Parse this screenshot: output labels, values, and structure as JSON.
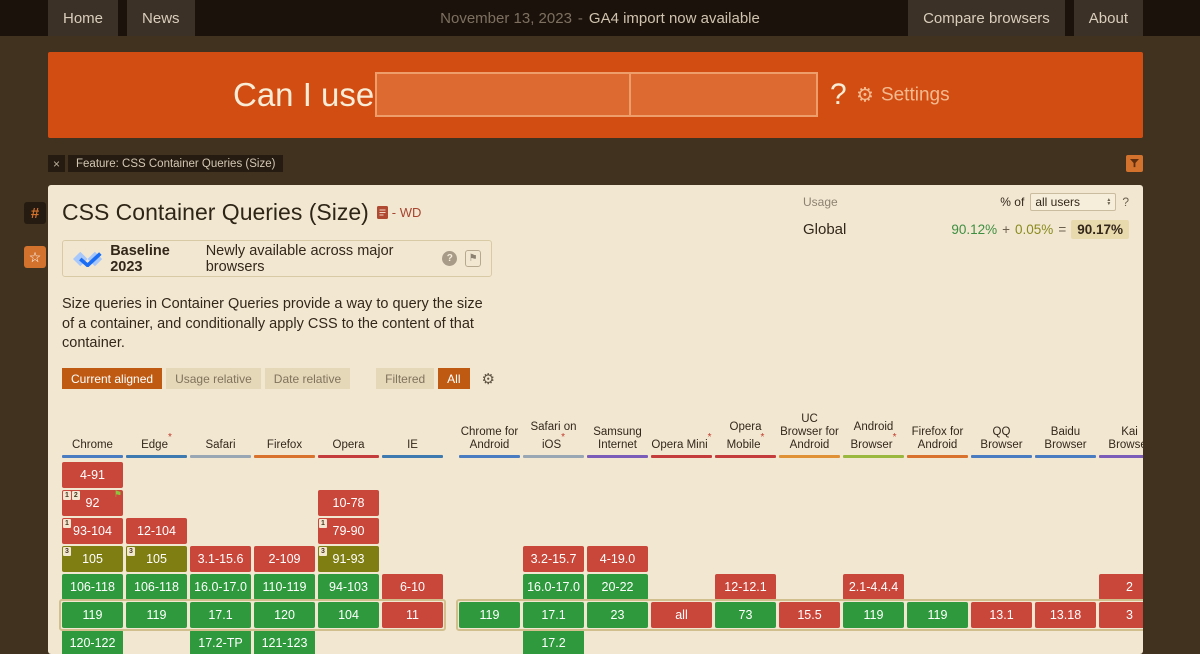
{
  "topbar": {
    "nav_left": [
      {
        "label": "Home"
      },
      {
        "label": "News"
      }
    ],
    "announcement": {
      "date": "November 13, 2023",
      "sep": "-",
      "message": "GA4 import now available"
    },
    "nav_right": [
      {
        "label": "Compare browsers"
      },
      {
        "label": "About"
      }
    ]
  },
  "hero": {
    "title": "Can I use",
    "suffix": "?",
    "settings": "Settings",
    "search_value": "",
    "search_placeholder": ""
  },
  "feature_bar": {
    "close": "×",
    "tag": "Feature: CSS Container Queries (Size)"
  },
  "side": {
    "hash": "#",
    "star": "☆"
  },
  "feature": {
    "title": "CSS Container Queries (Size)",
    "spec_status": "- WD",
    "usage": {
      "label": "Usage",
      "percent_of": "% of",
      "select": "all users",
      "help": "?",
      "scope": "Global",
      "main": "90.12%",
      "plus": "+",
      "partial": "0.05%",
      "equals": "=",
      "total": "90.17%"
    },
    "baseline": {
      "name": "Baseline 2023",
      "desc": "Newly available across major browsers",
      "help": "?"
    },
    "description": "Size queries in Container Queries provide a way to query the size of a container, and conditionally apply CSS to the content of that container.",
    "view_tabs": [
      {
        "label": "Current aligned",
        "active": true
      },
      {
        "label": "Usage relative",
        "active": false
      },
      {
        "label": "Date relative",
        "active": false
      }
    ],
    "filter_tabs": [
      {
        "label": "Filtered",
        "active": false
      },
      {
        "label": "All",
        "active": true
      }
    ]
  },
  "colors": {
    "y": "#2f9a3d",
    "n": "#c9473a",
    "p": "#7f7e13"
  },
  "table": {
    "slots": 7,
    "current_slot": 6,
    "groups": [
      {
        "name": "desktop",
        "columns": [
          {
            "label": "Chrome",
            "brand": "#4a7cc1",
            "cells": [
              {
                "slot": 1,
                "text": "4-91",
                "type": "n"
              },
              {
                "slot": 2,
                "text": "92",
                "type": "n",
                "notes": [
                  "1",
                  "2"
                ],
                "flag": true
              },
              {
                "slot": 3,
                "text": "93-104",
                "type": "n",
                "notes": [
                  "1"
                ]
              },
              {
                "slot": 4,
                "text": "105",
                "type": "p",
                "notes": [
                  "3"
                ]
              },
              {
                "slot": 5,
                "text": "106-118",
                "type": "y"
              },
              {
                "slot": 6,
                "text": "119",
                "type": "y"
              },
              {
                "slot": 7,
                "text": "120-122",
                "type": "y"
              }
            ]
          },
          {
            "label": "Edge",
            "asterisk": true,
            "brand": "#3e7ab0",
            "cells": [
              {
                "slot": 3,
                "text": "12-104",
                "type": "n"
              },
              {
                "slot": 4,
                "text": "105",
                "type": "p",
                "notes": [
                  "3"
                ]
              },
              {
                "slot": 5,
                "text": "106-118",
                "type": "y"
              },
              {
                "slot": 6,
                "text": "119",
                "type": "y"
              }
            ]
          },
          {
            "label": "Safari",
            "brand": "#99a7b5",
            "cells": [
              {
                "slot": 4,
                "text": "3.1-15.6",
                "type": "n"
              },
              {
                "slot": 5,
                "text": "16.0-17.0",
                "type": "y"
              },
              {
                "slot": 6,
                "text": "17.1",
                "type": "y"
              },
              {
                "slot": 7,
                "text": "17.2-TP",
                "type": "y"
              }
            ]
          },
          {
            "label": "Firefox",
            "brand": "#d9722c",
            "cells": [
              {
                "slot": 4,
                "text": "2-109",
                "type": "n"
              },
              {
                "slot": 5,
                "text": "110-119",
                "type": "y"
              },
              {
                "slot": 6,
                "text": "120",
                "type": "y"
              },
              {
                "slot": 7,
                "text": "121-123",
                "type": "y"
              }
            ]
          },
          {
            "label": "Opera",
            "brand": "#c43c3c",
            "cells": [
              {
                "slot": 2,
                "text": "10-78",
                "type": "n"
              },
              {
                "slot": 3,
                "text": "79-90",
                "type": "n",
                "notes": [
                  "1"
                ]
              },
              {
                "slot": 4,
                "text": "91-93",
                "type": "p",
                "notes": [
                  "3"
                ]
              },
              {
                "slot": 5,
                "text": "94-103",
                "type": "y"
              },
              {
                "slot": 6,
                "text": "104",
                "type": "y"
              }
            ]
          },
          {
            "label": "IE",
            "brand": "#3e7ab0",
            "cells": [
              {
                "slot": 5,
                "text": "6-10",
                "type": "n"
              },
              {
                "slot": 6,
                "text": "11",
                "type": "n"
              }
            ]
          }
        ]
      },
      {
        "name": "mobile",
        "columns": [
          {
            "label": "Chrome for Android",
            "brand": "#4a7cc1",
            "cells": [
              {
                "slot": 6,
                "text": "119",
                "type": "y"
              }
            ]
          },
          {
            "label": "Safari on iOS",
            "asterisk": true,
            "brand": "#99a7b5",
            "cells": [
              {
                "slot": 4,
                "text": "3.2-15.7",
                "type": "n"
              },
              {
                "slot": 5,
                "text": "16.0-17.0",
                "type": "y"
              },
              {
                "slot": 6,
                "text": "17.1",
                "type": "y"
              },
              {
                "slot": 7,
                "text": "17.2",
                "type": "y"
              }
            ]
          },
          {
            "label": "Samsung Internet",
            "brand": "#7b5cb8",
            "cells": [
              {
                "slot": 4,
                "text": "4-19.0",
                "type": "n"
              },
              {
                "slot": 5,
                "text": "20-22",
                "type": "y"
              },
              {
                "slot": 6,
                "text": "23",
                "type": "y"
              }
            ]
          },
          {
            "label": "Opera Mini",
            "asterisk": true,
            "brand": "#c43c3c",
            "cells": [
              {
                "slot": 6,
                "text": "all",
                "type": "n"
              }
            ]
          },
          {
            "label": "Opera Mobile",
            "asterisk": true,
            "brand": "#c43c3c",
            "cells": [
              {
                "slot": 5,
                "text": "12-12.1",
                "type": "n"
              },
              {
                "slot": 6,
                "text": "73",
                "type": "y"
              }
            ]
          },
          {
            "label": "UC Browser for Android",
            "brand": "#e09035",
            "cells": [
              {
                "slot": 6,
                "text": "15.5",
                "type": "n"
              }
            ]
          },
          {
            "label": "Android Browser",
            "asterisk": true,
            "brand": "#9ab83e",
            "cells": [
              {
                "slot": 5,
                "text": "2.1-4.4.4",
                "type": "n"
              },
              {
                "slot": 6,
                "text": "119",
                "type": "y"
              }
            ]
          },
          {
            "label": "Firefox for Android",
            "brand": "#d9722c",
            "cells": [
              {
                "slot": 6,
                "text": "119",
                "type": "y"
              }
            ]
          },
          {
            "label": "QQ Browser",
            "brand": "#4a7cc1",
            "cells": [
              {
                "slot": 6,
                "text": "13.1",
                "type": "n"
              }
            ]
          },
          {
            "label": "Baidu Browser",
            "brand": "#4a7cc1",
            "cells": [
              {
                "slot": 6,
                "text": "13.18",
                "type": "n"
              }
            ]
          },
          {
            "label": "Kai Browser",
            "brand": "#7b5cb8",
            "cells": [
              {
                "slot": 5,
                "text": "2",
                "type": "n"
              },
              {
                "slot": 6,
                "text": "3",
                "type": "n"
              }
            ]
          }
        ]
      }
    ]
  }
}
